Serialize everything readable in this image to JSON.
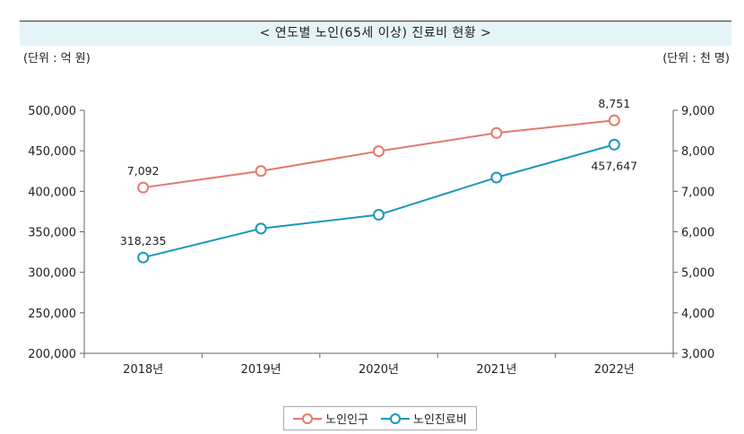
{
  "chart_data": {
    "type": "line",
    "title": "< 연도별 노인(65세 이상) 진료비 현황 >",
    "left_unit": "(단위 : 억 원)",
    "right_unit": "(단위 : 천 명)",
    "categories": [
      "2018년",
      "2019년",
      "2020년",
      "2021년",
      "2022년"
    ],
    "y_left": {
      "range": [
        200000,
        500000
      ],
      "ticks": [
        "200,000",
        "250,000",
        "300,000",
        "350,000",
        "400,000",
        "450,000",
        "500,000"
      ]
    },
    "y_right": {
      "range": [
        3000,
        9000
      ],
      "ticks": [
        "3,000",
        "4,000",
        "5,000",
        "6,000",
        "7,000",
        "8,000",
        "9,000"
      ]
    },
    "series": [
      {
        "name": "노인인구",
        "axis": "right",
        "color": "#e07b6e",
        "values": [
          7092,
          7500,
          7990,
          8440,
          8751
        ],
        "labels": [
          "7,092",
          null,
          null,
          null,
          "8,751"
        ]
      },
      {
        "name": "노인진료비",
        "axis": "left",
        "color": "#1a97bc",
        "values": [
          318235,
          354000,
          371000,
          417000,
          457647
        ],
        "labels": [
          "318,235",
          null,
          null,
          null,
          "457,647"
        ]
      }
    ],
    "grid": false,
    "legend_position": "bottom"
  }
}
